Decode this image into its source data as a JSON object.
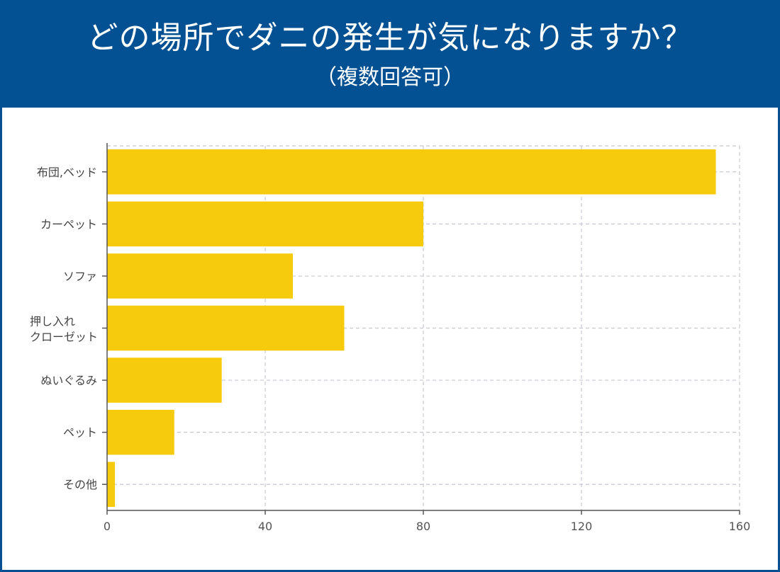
{
  "header": {
    "title": "どの場所でダニの発生が気になりますか？",
    "subtitle": "（複数回答可）",
    "background_color": "#035193"
  },
  "chart_data": {
    "type": "bar",
    "orientation": "horizontal",
    "title": "どの場所でダニの発生が気になりますか？",
    "subtitle": "（複数回答可）",
    "categories": [
      "布団,ベッド",
      "カーペット",
      "ソファ",
      "押し入れ\nクローゼット",
      "ぬいぐるみ",
      "ペット",
      "その他"
    ],
    "values": [
      154,
      80,
      47,
      60,
      29,
      17,
      2
    ],
    "bar_color": "#f7cb0d",
    "xlim": [
      0,
      160
    ],
    "xticks": [
      0,
      40,
      80,
      120,
      160
    ],
    "xlabel": "",
    "ylabel": "",
    "grid": true
  }
}
